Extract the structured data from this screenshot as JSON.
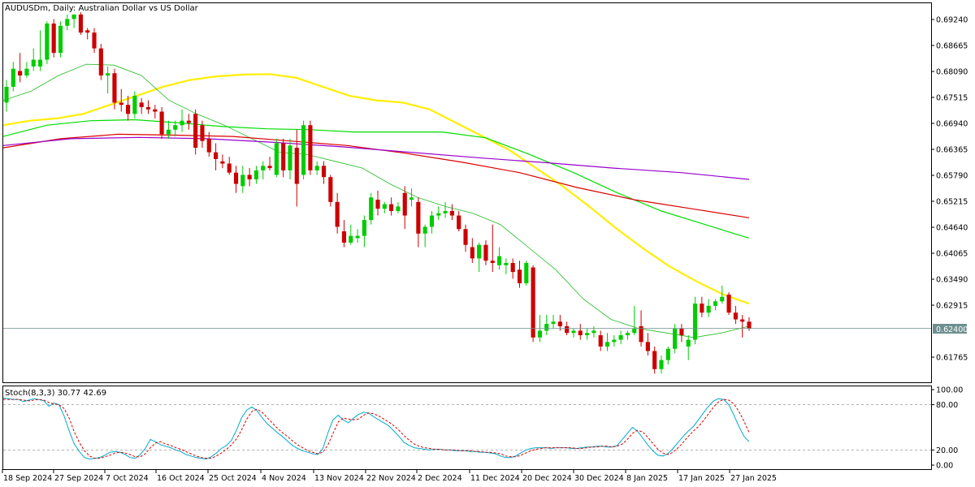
{
  "colors": {
    "background": "#ffffff",
    "frame": "#000000",
    "bull": "#00cc00",
    "bear": "#cc0000",
    "ma_yellow": "#ffee00",
    "ma_green_thin": "#22bb22",
    "ma_green": "#00dd00",
    "ma_red": "#dd0000",
    "ma_purple": "#9900cc",
    "stoch_main": "#00aacc",
    "stoch_signal": "#dd0000",
    "price_line": "#6f8f8f",
    "price_box": "#6f8f8f"
  },
  "header": {
    "symbol_label": "AUDUSDm, Daily:  Australian Dollar vs US Dollar"
  },
  "current_price_label": "0.62400",
  "stoch_panel": {
    "header": "Stoch(8,3,3) 30.77 42.69",
    "y_ticks": [
      "100.00",
      "80.00",
      "20.00",
      "0.00"
    ]
  },
  "chart_data": [
    {
      "type": "candlestick",
      "title": "AUDUSDm, Daily:  Australian Dollar vs US Dollar",
      "grid": false,
      "y_ticks": [
        0.6924,
        0.68665,
        0.6809,
        0.67515,
        0.6694,
        0.66365,
        0.6579,
        0.65215,
        0.6464,
        0.64065,
        0.6349,
        0.62915,
        0.61765
      ],
      "y_tick_labels": [
        "0.69240",
        "0.68665",
        "0.68090",
        "0.67515",
        "0.66940",
        "0.66365",
        "0.65790",
        "0.65215",
        "0.64640",
        "0.64065",
        "0.63490",
        "0.62915",
        "0.61765"
      ],
      "ylim": [
        0.6123,
        0.6942
      ],
      "x_tick_labels": [
        "18 Sep 2024",
        "27 Sep 2024",
        "7 Oct 2024",
        "16 Oct 2024",
        "25 Oct 2024",
        "4 Nov 2024",
        "13 Nov 2024",
        "22 Nov 2024",
        "2 Dec 2024",
        "11 Dec 2024",
        "20 Dec 2024",
        "30 Dec 2024",
        "8 Jan 2025",
        "17 Jan 2025",
        "27 Jan 2025"
      ],
      "current_price": 0.624,
      "candles": [
        [
          0.674,
          0.679,
          0.672,
          0.6775
        ],
        [
          0.6775,
          0.683,
          0.6765,
          0.6815
        ],
        [
          0.681,
          0.685,
          0.6785,
          0.68
        ],
        [
          0.68,
          0.683,
          0.6795,
          0.6815
        ],
        [
          0.682,
          0.686,
          0.681,
          0.6835
        ],
        [
          0.682,
          0.69,
          0.681,
          0.6835
        ],
        [
          0.6835,
          0.692,
          0.6825,
          0.6915
        ],
        [
          0.6915,
          0.6925,
          0.684,
          0.685
        ],
        [
          0.685,
          0.692,
          0.684,
          0.691
        ],
        [
          0.691,
          0.6935,
          0.69,
          0.6925
        ],
        [
          0.6925,
          0.6935,
          0.6905,
          0.6935
        ],
        [
          0.6935,
          0.694,
          0.689,
          0.6895
        ],
        [
          0.69,
          0.6905,
          0.688,
          0.6895
        ],
        [
          0.6895,
          0.6905,
          0.685,
          0.686
        ],
        [
          0.686,
          0.687,
          0.679,
          0.68
        ],
        [
          0.68,
          0.682,
          0.676,
          0.6805
        ],
        [
          0.6805,
          0.6815,
          0.6725,
          0.674
        ],
        [
          0.674,
          0.677,
          0.672,
          0.6735
        ],
        [
          0.6735,
          0.6755,
          0.67,
          0.6715
        ],
        [
          0.6715,
          0.6765,
          0.6705,
          0.6755
        ],
        [
          0.674,
          0.675,
          0.6715,
          0.673
        ],
        [
          0.673,
          0.6745,
          0.6715,
          0.6725
        ],
        [
          0.6725,
          0.6735,
          0.6705,
          0.672
        ],
        [
          0.672,
          0.673,
          0.666,
          0.667
        ],
        [
          0.667,
          0.67,
          0.666,
          0.668
        ],
        [
          0.668,
          0.67,
          0.6665,
          0.669
        ],
        [
          0.669,
          0.6725,
          0.6675,
          0.67
        ],
        [
          0.67,
          0.6715,
          0.668,
          0.6695
        ],
        [
          0.6715,
          0.6725,
          0.6625,
          0.664
        ],
        [
          0.669,
          0.67,
          0.664,
          0.6655
        ],
        [
          0.666,
          0.6675,
          0.662,
          0.663
        ],
        [
          0.663,
          0.665,
          0.659,
          0.6615
        ],
        [
          0.661,
          0.6625,
          0.6595,
          0.6605
        ],
        [
          0.6605,
          0.662,
          0.658,
          0.6585
        ],
        [
          0.6585,
          0.66,
          0.654,
          0.656
        ],
        [
          0.6555,
          0.66,
          0.654,
          0.658
        ],
        [
          0.658,
          0.6595,
          0.6555,
          0.657
        ],
        [
          0.657,
          0.66,
          0.656,
          0.659
        ],
        [
          0.659,
          0.661,
          0.657,
          0.66
        ],
        [
          0.66,
          0.662,
          0.659,
          0.6595
        ],
        [
          0.658,
          0.666,
          0.6575,
          0.665
        ],
        [
          0.665,
          0.666,
          0.6575,
          0.659
        ],
        [
          0.659,
          0.666,
          0.657,
          0.6645
        ],
        [
          0.664,
          0.668,
          0.651,
          0.656
        ],
        [
          0.658,
          0.67,
          0.657,
          0.669
        ],
        [
          0.669,
          0.67,
          0.658,
          0.659
        ],
        [
          0.659,
          0.661,
          0.658,
          0.66
        ],
        [
          0.66,
          0.661,
          0.656,
          0.6575
        ],
        [
          0.6575,
          0.658,
          0.651,
          0.652
        ],
        [
          0.652,
          0.654,
          0.645,
          0.6465
        ],
        [
          0.6455,
          0.648,
          0.642,
          0.643
        ],
        [
          0.643,
          0.647,
          0.6425,
          0.6445
        ],
        [
          0.644,
          0.646,
          0.643,
          0.6445
        ],
        [
          0.6445,
          0.649,
          0.642,
          0.648
        ],
        [
          0.648,
          0.654,
          0.647,
          0.653
        ],
        [
          0.6525,
          0.6545,
          0.649,
          0.6505
        ],
        [
          0.6505,
          0.652,
          0.6495,
          0.6515
        ],
        [
          0.6515,
          0.653,
          0.649,
          0.65
        ],
        [
          0.65,
          0.652,
          0.6495,
          0.651
        ],
        [
          0.654,
          0.6555,
          0.646,
          0.649
        ],
        [
          0.6525,
          0.655,
          0.651,
          0.653
        ],
        [
          0.652,
          0.653,
          0.642,
          0.645
        ],
        [
          0.645,
          0.647,
          0.642,
          0.6465
        ],
        [
          0.6465,
          0.65,
          0.645,
          0.649
        ],
        [
          0.649,
          0.651,
          0.648,
          0.6495
        ],
        [
          0.6495,
          0.652,
          0.6485,
          0.65
        ],
        [
          0.65,
          0.6515,
          0.648,
          0.649
        ],
        [
          0.649,
          0.65,
          0.6455,
          0.646
        ],
        [
          0.646,
          0.647,
          0.641,
          0.6425
        ],
        [
          0.642,
          0.644,
          0.6385,
          0.6395
        ],
        [
          0.6395,
          0.643,
          0.6365,
          0.6425
        ],
        [
          0.6425,
          0.6435,
          0.638,
          0.639
        ],
        [
          0.639,
          0.647,
          0.6365,
          0.6385
        ],
        [
          0.638,
          0.642,
          0.637,
          0.64
        ],
        [
          0.638,
          0.6395,
          0.636,
          0.6385
        ],
        [
          0.6385,
          0.6395,
          0.635,
          0.6365
        ],
        [
          0.637,
          0.639,
          0.633,
          0.634
        ],
        [
          0.634,
          0.639,
          0.6335,
          0.6385
        ],
        [
          0.6375,
          0.638,
          0.621,
          0.622
        ],
        [
          0.622,
          0.627,
          0.621,
          0.6235
        ],
        [
          0.6235,
          0.627,
          0.6225,
          0.625
        ],
        [
          0.625,
          0.627,
          0.624,
          0.6255
        ],
        [
          0.6255,
          0.627,
          0.6235,
          0.6245
        ],
        [
          0.6245,
          0.6255,
          0.6225,
          0.623
        ],
        [
          0.623,
          0.624,
          0.622,
          0.6235
        ],
        [
          0.6235,
          0.625,
          0.6215,
          0.6225
        ],
        [
          0.6225,
          0.624,
          0.6215,
          0.623
        ],
        [
          0.623,
          0.6245,
          0.622,
          0.6235
        ],
        [
          0.6225,
          0.6235,
          0.619,
          0.62
        ],
        [
          0.62,
          0.623,
          0.619,
          0.621
        ],
        [
          0.621,
          0.6225,
          0.62,
          0.6215
        ],
        [
          0.6215,
          0.6235,
          0.6205,
          0.6225
        ],
        [
          0.6225,
          0.6235,
          0.6215,
          0.623
        ],
        [
          0.623,
          0.629,
          0.6225,
          0.624
        ],
        [
          0.6245,
          0.628,
          0.62,
          0.621
        ],
        [
          0.621,
          0.623,
          0.618,
          0.619
        ],
        [
          0.619,
          0.62,
          0.614,
          0.615
        ],
        [
          0.615,
          0.618,
          0.614,
          0.617
        ],
        [
          0.617,
          0.62,
          0.616,
          0.6195
        ],
        [
          0.6195,
          0.625,
          0.6185,
          0.624
        ],
        [
          0.624,
          0.625,
          0.621,
          0.6225
        ],
        [
          0.62,
          0.6225,
          0.617,
          0.6215
        ],
        [
          0.6215,
          0.631,
          0.6205,
          0.6295
        ],
        [
          0.6295,
          0.631,
          0.6265,
          0.6275
        ],
        [
          0.6275,
          0.6305,
          0.6265,
          0.629
        ],
        [
          0.629,
          0.6305,
          0.628,
          0.63
        ],
        [
          0.63,
          0.6335,
          0.6295,
          0.631
        ],
        [
          0.6315,
          0.632,
          0.627,
          0.6275
        ],
        [
          0.6275,
          0.629,
          0.625,
          0.626
        ],
        [
          0.626,
          0.627,
          0.622,
          0.6255
        ],
        [
          0.6255,
          0.6265,
          0.6235,
          0.624
        ]
      ],
      "series": [
        {
          "color": "#ffee00",
          "values": [
            0.669,
            0.67,
            0.6705,
            0.6715,
            0.6735,
            0.6755,
            0.6775,
            0.679,
            0.6798,
            0.6802,
            0.6803,
            0.6795,
            0.6775,
            0.6755,
            0.6745,
            0.674,
            0.6725,
            0.6695,
            0.6665,
            0.6635,
            0.6595,
            0.6555,
            0.651,
            0.6462,
            0.6418,
            0.6378,
            0.6345,
            0.6316,
            0.6295
          ]
        },
        {
          "color": "#22bb22",
          "values": [
            0.6745,
            0.6765,
            0.68,
            0.6825,
            0.6823,
            0.68,
            0.6745,
            0.6715,
            0.669,
            0.666,
            0.663,
            0.6625,
            0.661,
            0.6595,
            0.656,
            0.653,
            0.651,
            0.6495,
            0.647,
            0.642,
            0.637,
            0.6305,
            0.626,
            0.624,
            0.623,
            0.622,
            0.623,
            0.6245
          ]
        },
        {
          "color": "#00dd00",
          "values": [
            0.6665,
            0.669,
            0.67,
            0.6702,
            0.6695,
            0.6687,
            0.6682,
            0.668,
            0.6675,
            0.6675,
            0.6675,
            0.6662,
            0.6625,
            0.6585,
            0.654,
            0.65,
            0.647,
            0.644
          ]
        },
        {
          "color": "#dd0000",
          "values": [
            0.664,
            0.666,
            0.667,
            0.6668,
            0.6665,
            0.6655,
            0.6645,
            0.6628,
            0.6608,
            0.6585,
            0.6552,
            0.6525,
            0.6505,
            0.6485
          ]
        },
        {
          "color": "#9900cc",
          "values": [
            0.6645,
            0.666,
            0.6663,
            0.666,
            0.6652,
            0.6642,
            0.663,
            0.6618,
            0.6607,
            0.6595,
            0.6585,
            0.657
          ]
        }
      ]
    },
    {
      "type": "line",
      "title": "Stoch(8,3,3) 30.77 42.69",
      "ylim": [
        0,
        100
      ],
      "y_ticks": [
        0,
        20,
        80,
        100
      ],
      "levels": [
        20,
        80
      ],
      "series": [
        {
          "name": "30.77",
          "values": [
            89,
            88,
            87,
            87,
            84,
            86,
            88,
            87,
            85,
            78,
            82,
            80,
            65,
            45,
            28,
            18,
            10,
            8,
            9,
            10,
            13,
            17,
            18,
            17,
            14,
            10,
            9,
            14,
            22,
            34,
            31,
            27,
            25,
            23,
            20,
            18,
            14,
            12,
            10,
            9,
            8,
            11,
            16,
            22,
            26,
            33,
            47,
            63,
            73,
            77,
            72,
            63,
            55,
            49,
            43,
            38,
            32,
            26,
            22,
            19,
            17,
            15,
            14,
            22,
            43,
            60,
            66,
            60,
            56,
            62,
            67,
            70,
            69,
            64,
            60,
            56,
            52,
            45,
            38,
            30,
            26,
            23,
            22,
            21,
            20,
            21,
            21,
            20,
            20,
            19,
            19,
            19,
            18,
            18,
            17,
            17,
            16,
            15,
            12,
            10,
            10,
            12,
            16,
            20,
            22,
            23,
            23,
            23,
            22,
            23,
            23,
            23,
            22,
            22,
            23,
            24,
            24,
            25,
            25,
            24,
            24,
            26,
            34,
            42,
            50,
            45,
            36,
            27,
            19,
            13,
            12,
            15,
            22,
            30,
            38,
            45,
            51,
            60,
            69,
            78,
            85,
            88,
            87,
            80,
            66,
            51,
            38,
            31
          ]
        },
        {
          "name": "42.69",
          "values": [
            87,
            87,
            87,
            87,
            86,
            85,
            86,
            87,
            86,
            83,
            81,
            80,
            75,
            62,
            44,
            30,
            19,
            12,
            9,
            9,
            11,
            13,
            16,
            17,
            16,
            14,
            11,
            11,
            15,
            23,
            29,
            31,
            28,
            26,
            23,
            21,
            18,
            15,
            12,
            10,
            9,
            9,
            12,
            16,
            21,
            27,
            35,
            47,
            61,
            71,
            74,
            70,
            63,
            56,
            49,
            43,
            38,
            32,
            27,
            23,
            19,
            17,
            15,
            17,
            27,
            42,
            57,
            62,
            61,
            60,
            61,
            66,
            69,
            68,
            65,
            61,
            57,
            52,
            46,
            39,
            33,
            28,
            25,
            23,
            22,
            21,
            21,
            20,
            20,
            20,
            19,
            19,
            19,
            18,
            18,
            17,
            17,
            16,
            15,
            12,
            11,
            11,
            13,
            16,
            19,
            21,
            22,
            23,
            23,
            23,
            23,
            23,
            23,
            22,
            22,
            23,
            24,
            24,
            25,
            25,
            24,
            25,
            28,
            34,
            42,
            46,
            44,
            37,
            29,
            21,
            16,
            14,
            17,
            23,
            30,
            38,
            45,
            51,
            59,
            68,
            77,
            84,
            87,
            86,
            81,
            71,
            58,
            43
          ]
        }
      ]
    }
  ]
}
